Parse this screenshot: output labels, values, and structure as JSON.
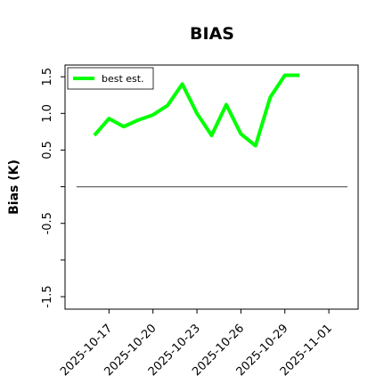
{
  "chart_data": {
    "type": "line",
    "title": "BIAS",
    "y_label": "Bias (K)",
    "x": [
      "2025-10-16",
      "2025-10-17",
      "2025-10-18",
      "2025-10-19",
      "2025-10-20",
      "2025-10-21",
      "2025-10-22",
      "2025-10-23",
      "2025-10-24",
      "2025-10-25",
      "2025-10-26",
      "2025-10-27",
      "2025-10-28",
      "2025-10-29",
      "2025-10-30"
    ],
    "series": [
      {
        "name": "best est.",
        "color": "#00ff00",
        "values": [
          0.7,
          0.93,
          0.82,
          0.91,
          0.98,
          1.11,
          1.4,
          1.0,
          0.7,
          1.12,
          0.72,
          0.56,
          1.22,
          1.52,
          1.52
        ]
      }
    ],
    "xlim": [
      "2025-10-14",
      "2025-11-03"
    ],
    "xticks": [
      "2025-10-17",
      "2025-10-20",
      "2025-10-23",
      "2025-10-26",
      "2025-10-29",
      "2025-11-01"
    ],
    "ylim": [
      -1.67,
      1.66
    ],
    "yticks": [
      {
        "value": 1.5,
        "label": "1.5"
      },
      {
        "value": 1,
        "label": "1.0"
      },
      {
        "value": 0.5,
        "label": "0.5"
      },
      -0.5,
      -1.5
    ],
    "yticks_unlabeled": [
      0,
      -1
    ],
    "reference_line": 0,
    "legend": "upper left"
  }
}
